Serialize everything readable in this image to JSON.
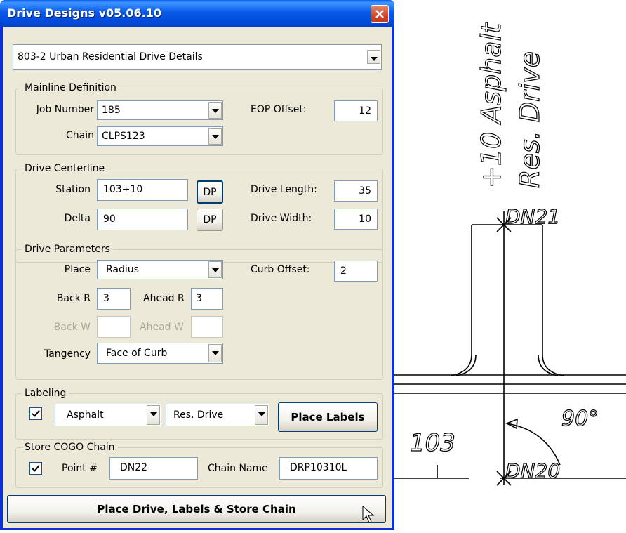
{
  "window": {
    "title": "Drive Designs v05.06.10"
  },
  "template": "803-2 Urban Residential Drive Details",
  "mainline": {
    "legend": "Mainline Definition",
    "job_number_label": "Job Number",
    "job_number": "185",
    "eop_offset_label": "EOP Offset:",
    "eop_offset": "12",
    "chain_label": "Chain",
    "chain": "CLPS123"
  },
  "centerline": {
    "legend": "Drive Centerline",
    "station_label": "Station",
    "station": "103+10",
    "station_button": "DP",
    "delta_label": "Delta",
    "delta": "90",
    "delta_button": "DP",
    "length_label": "Drive Length:",
    "length": "35",
    "width_label": "Drive Width:",
    "width": "10"
  },
  "parameters": {
    "legend": "Drive Parameters",
    "place_label": "Place",
    "place": "Radius",
    "curb_offset_label": "Curb Offset:",
    "curb_offset": "2",
    "back_r_label": "Back R",
    "back_r": "3",
    "ahead_r_label": "Ahead R",
    "ahead_r": "3",
    "back_w_label": "Back W",
    "ahead_w_label": "Ahead W",
    "tangency_label": "Tangency",
    "tangency": "Face of Curb"
  },
  "labeling": {
    "legend": "Labeling",
    "surface": "Asphalt",
    "drive_type": "Res. Drive",
    "button": "Place Labels"
  },
  "cogo": {
    "legend": "Store COGO Chain",
    "point_label": "Point #",
    "point": "DN22",
    "chain_name_label": "Chain Name",
    "chain_name": "DRP10310L"
  },
  "main_button": "Place Drive, Labels & Store Chain",
  "drawing": {
    "station_label": "+10 Asphalt",
    "drive_label": "Res. Drive",
    "top_point": "DN21",
    "angle": "90°",
    "station": "103",
    "bottom_point": "DN20"
  }
}
